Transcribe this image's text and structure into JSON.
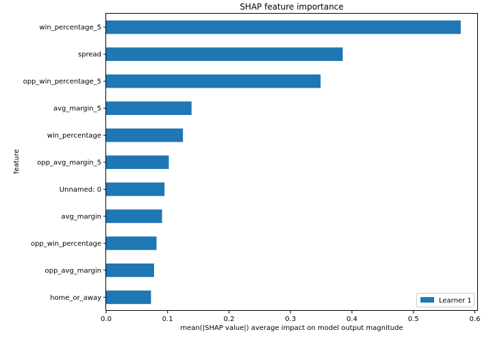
{
  "chart_data": {
    "type": "bar",
    "orientation": "horizontal",
    "title": "SHAP feature importance",
    "xlabel": "mean(|SHAP value|) average impact on model output magnitude",
    "ylabel": "feature",
    "categories": [
      "win_percentage_5",
      "spread",
      "opp_win_percentage_5",
      "avg_margin_5",
      "win_percentage",
      "opp_avg_margin_5",
      "Unnamed: 0",
      "avg_margin",
      "opp_win_percentage",
      "opp_avg_margin",
      "home_or_away"
    ],
    "series": [
      {
        "name": "Learner 1",
        "color": "#1f77b4",
        "values": [
          0.577,
          0.385,
          0.349,
          0.139,
          0.125,
          0.102,
          0.095,
          0.091,
          0.082,
          0.078,
          0.073
        ]
      }
    ],
    "xlim": [
      0,
      0.605
    ],
    "xticks": [
      "0.0",
      "0.1",
      "0.2",
      "0.3",
      "0.4",
      "0.5",
      "0.6"
    ],
    "grid": false,
    "legend_position": "bottom-right"
  }
}
